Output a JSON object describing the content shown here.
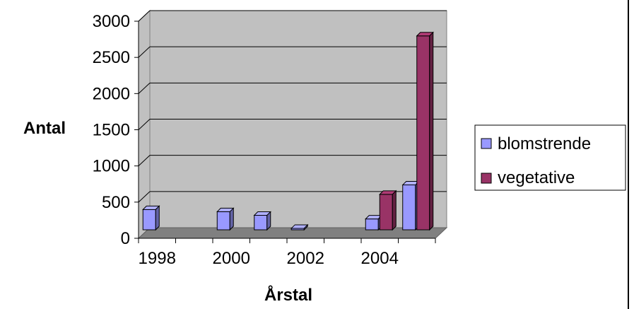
{
  "chart_data": {
    "type": "bar",
    "x_tick_labels": [
      "1998",
      "2000",
      "2002",
      "2004"
    ],
    "ylabel": "Antal",
    "xlabel": "Årstal",
    "ylim": [
      0,
      3000
    ],
    "y_ticks": [
      0,
      500,
      1000,
      1500,
      2000,
      2500,
      3000
    ],
    "grid": true,
    "legend_position": "right",
    "series": [
      {
        "name": "blomstrende",
        "color": "#9999ff",
        "points": [
          {
            "x": 1998,
            "y": 280
          },
          {
            "x": 2000,
            "y": 250
          },
          {
            "x": 2001,
            "y": 200
          },
          {
            "x": 2002,
            "y": 20
          },
          {
            "x": 2004,
            "y": 150
          },
          {
            "x": 2005,
            "y": 620
          }
        ]
      },
      {
        "name": "vegetative",
        "color": "#993366",
        "points": [
          {
            "x": 2004,
            "y": 490
          },
          {
            "x": 2005,
            "y": 2680
          }
        ]
      }
    ]
  }
}
